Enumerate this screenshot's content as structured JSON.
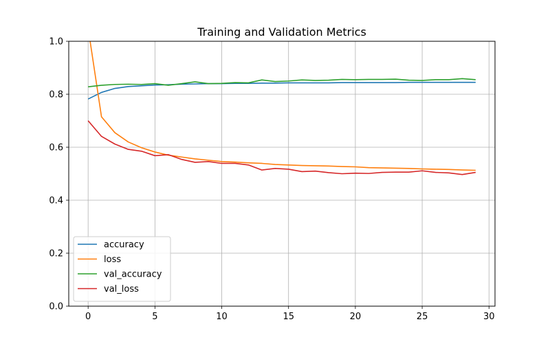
{
  "chart_data": {
    "type": "line",
    "title": "Training and Validation Metrics",
    "xlabel": "",
    "ylabel": "",
    "xlim": [
      -1.45,
      30.45
    ],
    "ylim": [
      0,
      1
    ],
    "xticks": [
      0,
      5,
      10,
      15,
      20,
      25,
      30
    ],
    "yticks": [
      0.0,
      0.2,
      0.4,
      0.6,
      0.8,
      1.0
    ],
    "xtick_labels": [
      "0",
      "5",
      "10",
      "15",
      "20",
      "25",
      "30"
    ],
    "ytick_labels": [
      "0.0",
      "0.2",
      "0.4",
      "0.6",
      "0.8",
      "1.0"
    ],
    "grid": true,
    "legend_position": "lower-left",
    "x": [
      0,
      1,
      2,
      3,
      4,
      5,
      6,
      7,
      8,
      9,
      10,
      11,
      12,
      13,
      14,
      15,
      16,
      17,
      18,
      19,
      20,
      21,
      22,
      23,
      24,
      25,
      26,
      27,
      28,
      29
    ],
    "series": [
      {
        "name": "accuracy",
        "color": "#1f77b4",
        "values": [
          0.782,
          0.807,
          0.822,
          0.829,
          0.832,
          0.835,
          0.836,
          0.838,
          0.839,
          0.84,
          0.84,
          0.841,
          0.841,
          0.842,
          0.842,
          0.843,
          0.843,
          0.843,
          0.843,
          0.844,
          0.844,
          0.844,
          0.844,
          0.844,
          0.845,
          0.845,
          0.845,
          0.845,
          0.845,
          0.845
        ]
      },
      {
        "name": "loss",
        "color": "#ff7f0e",
        "values": [
          1.05,
          0.715,
          0.655,
          0.62,
          0.598,
          0.582,
          0.57,
          0.563,
          0.556,
          0.551,
          0.546,
          0.544,
          0.541,
          0.539,
          0.535,
          0.533,
          0.531,
          0.53,
          0.529,
          0.527,
          0.526,
          0.523,
          0.522,
          0.521,
          0.52,
          0.518,
          0.517,
          0.516,
          0.514,
          0.513
        ]
      },
      {
        "name": "val_accuracy",
        "color": "#2ca02c",
        "values": [
          0.828,
          0.834,
          0.837,
          0.838,
          0.837,
          0.84,
          0.834,
          0.84,
          0.847,
          0.84,
          0.841,
          0.844,
          0.843,
          0.854,
          0.848,
          0.85,
          0.854,
          0.852,
          0.853,
          0.856,
          0.855,
          0.856,
          0.856,
          0.857,
          0.853,
          0.852,
          0.855,
          0.855,
          0.859,
          0.855
        ]
      },
      {
        "name": "val_loss",
        "color": "#d62728",
        "values": [
          0.7,
          0.641,
          0.612,
          0.592,
          0.585,
          0.568,
          0.572,
          0.554,
          0.543,
          0.546,
          0.539,
          0.539,
          0.533,
          0.514,
          0.52,
          0.517,
          0.508,
          0.51,
          0.504,
          0.5,
          0.502,
          0.501,
          0.505,
          0.506,
          0.506,
          0.511,
          0.505,
          0.503,
          0.497,
          0.505
        ]
      }
    ]
  }
}
